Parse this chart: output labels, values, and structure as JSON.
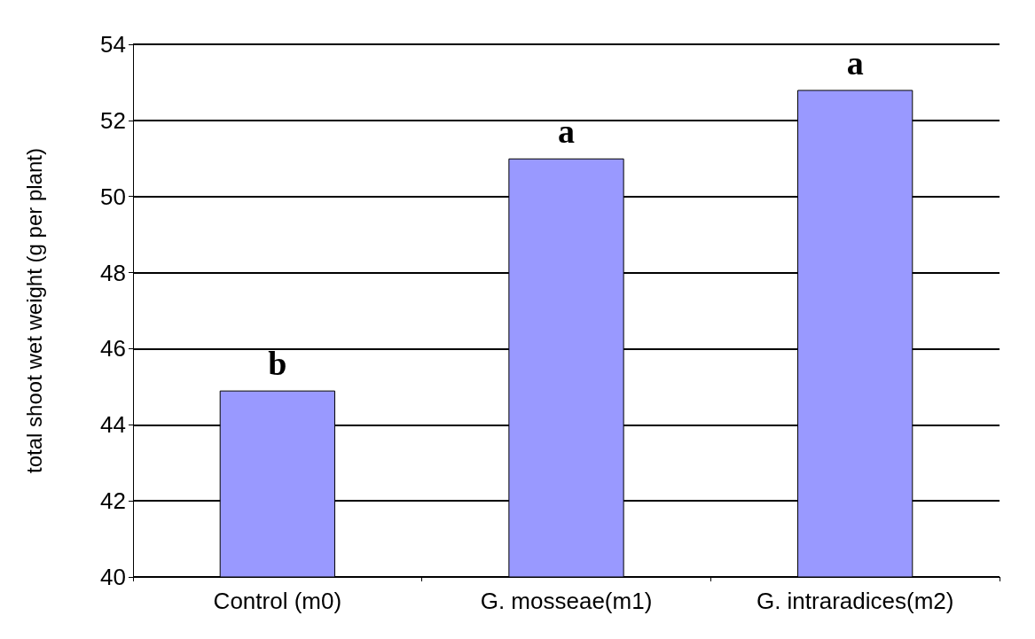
{
  "chart_data": {
    "type": "bar",
    "ylabel": "total shoot wet weight (g per plant)",
    "categories": [
      "Control (m0)",
      "G. mosseae(m1)",
      "G. intraradices(m2)"
    ],
    "values": [
      44.9,
      51.0,
      52.8
    ],
    "color": "#9999ff",
    "ylim": [
      40,
      54
    ],
    "yticks": [
      40,
      42,
      44,
      46,
      48,
      50,
      52,
      54
    ],
    "grid": "y",
    "annotations": [
      {
        "text": "b",
        "x": "Control (m0)",
        "y": 44.9
      },
      {
        "text": "a",
        "x": "G. mosseae(m1)",
        "y": 51.0
      },
      {
        "text": "a",
        "x": "G. intraradices(m2)",
        "y": 52.8
      }
    ]
  }
}
